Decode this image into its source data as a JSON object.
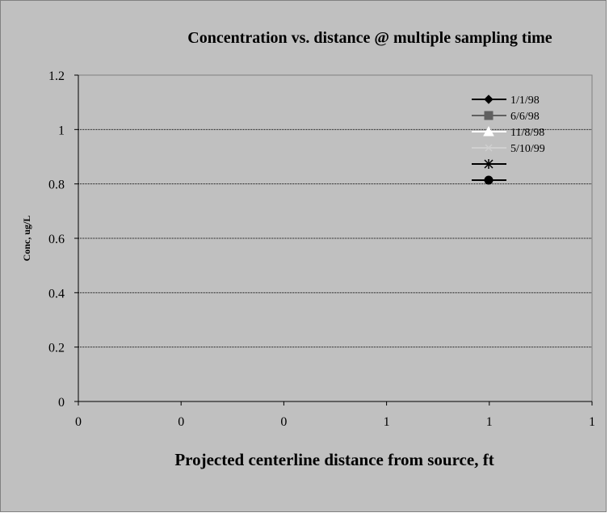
{
  "chart_data": {
    "type": "line",
    "title": "Concentration vs. distance @ multiple sampling time",
    "xlabel": "Projected centerline distance from source, ft",
    "ylabel": "Conc, ug/L",
    "x_tick_labels": [
      "0",
      "0",
      "0",
      "1",
      "1",
      "1"
    ],
    "y_tick_labels": [
      "1.2",
      "1",
      "0.8",
      "0.6",
      "0.4",
      "0.2",
      "0"
    ],
    "ylim": [
      0,
      1.2
    ],
    "y_ticks": [
      1.2,
      1,
      0.8,
      0.6,
      0.4,
      0.2,
      0
    ],
    "grid": true,
    "legend_position": "top-right",
    "series": [
      {
        "name": "1/1/98",
        "marker": "diamond",
        "color": "#000000",
        "values": []
      },
      {
        "name": "6/6/98",
        "marker": "square",
        "color": "#606060",
        "values": []
      },
      {
        "name": "11/8/98",
        "marker": "triangle",
        "color": "#ffffff",
        "values": []
      },
      {
        "name": "5/10/99",
        "marker": "x",
        "color": "#d0d0d0",
        "values": []
      },
      {
        "name": "",
        "marker": "star",
        "color": "#000000",
        "values": []
      },
      {
        "name": "",
        "marker": "circle",
        "color": "#000000",
        "values": []
      }
    ]
  },
  "colors": {
    "chart_area": "#c0c0c0",
    "plot_area": "#c0c0c0",
    "gridline": "#000000",
    "axis": "#000000"
  }
}
